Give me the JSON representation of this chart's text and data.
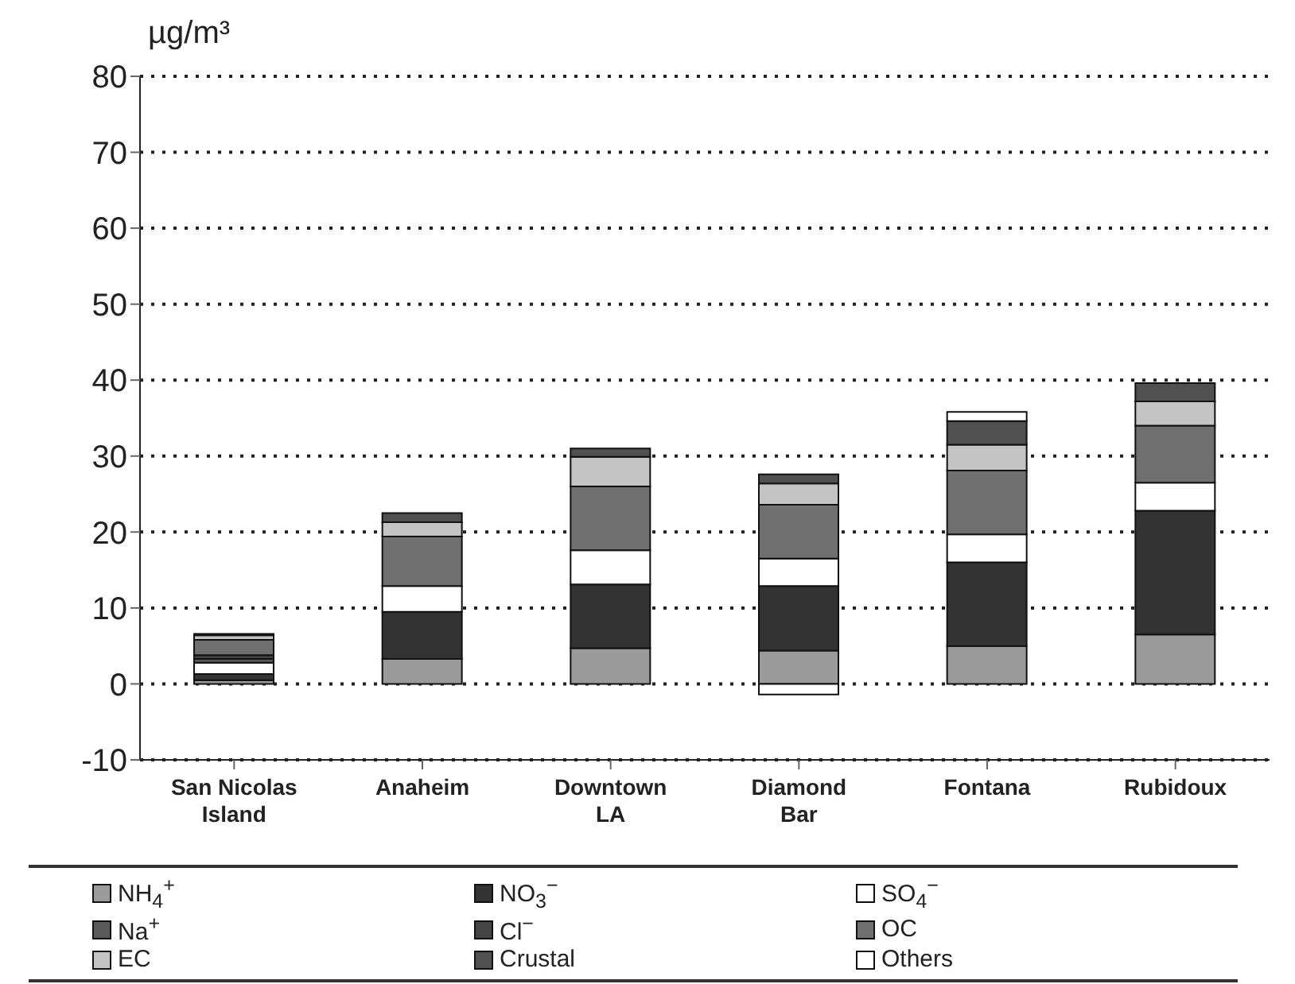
{
  "chart_data": {
    "type": "bar",
    "stacked": true,
    "ylabel": "µg/m³",
    "categories": [
      "San Nicolas Island",
      "Anaheim",
      "Downtown LA",
      "Diamond Bar",
      "Fontana",
      "Rubidoux"
    ],
    "series": [
      {
        "name": "NH$_{4}$$^{+}$",
        "color": "#9a9a9a",
        "values": [
          0.5,
          3.3,
          4.7,
          4.4,
          5,
          6.5
        ]
      },
      {
        "name": "NO$_{3}$$^{−}$",
        "color": "#333333",
        "values": [
          0.8,
          6.2,
          8.4,
          8.5,
          11,
          16.3
        ]
      },
      {
        "name": "SO$_{4}$$^{−}$",
        "color": "#ffffff",
        "values": [
          1.5,
          3.4,
          4.5,
          3.6,
          3.7,
          3.7
        ]
      },
      {
        "name": "Na$^{+}$",
        "color": "#5a5a5a",
        "values": [
          0.5,
          0,
          0,
          0,
          0,
          0
        ]
      },
      {
        "name": "Cl$^{−}$",
        "color": "#444444",
        "values": [
          0.5,
          0,
          0,
          0,
          0,
          0
        ]
      },
      {
        "name": "OC",
        "color": "#707070",
        "values": [
          2,
          6.5,
          8.4,
          7.1,
          8.4,
          7.5
        ]
      },
      {
        "name": "EC",
        "color": "#c4c4c4",
        "values": [
          0.6,
          1.9,
          3.9,
          2.8,
          3.4,
          3.2
        ]
      },
      {
        "name": "Crustal",
        "color": "#505050",
        "values": [
          0.2,
          1.2,
          1.1,
          1.2,
          3.1,
          2.4
        ]
      },
      {
        "name": "Others",
        "color": "#ffffff",
        "values": [
          0,
          0,
          0,
          -1.4,
          1.2,
          0
        ]
      }
    ],
    "ylim": [
      -10,
      80
    ],
    "yticks": [
      -10,
      0,
      10,
      20,
      30,
      40,
      50,
      60,
      70,
      80
    ],
    "grid": "y",
    "legend": "bottom"
  }
}
